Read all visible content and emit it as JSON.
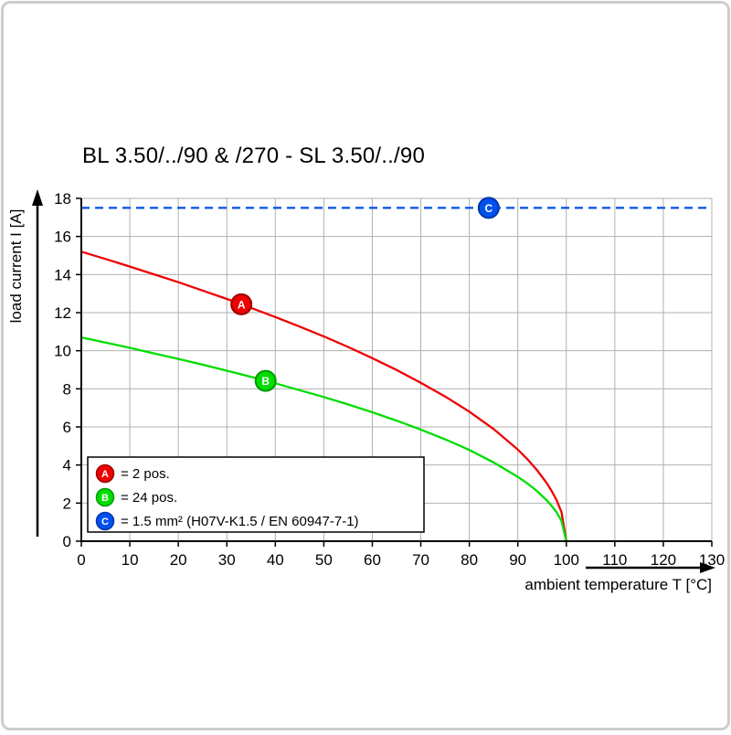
{
  "page": {
    "title": "BL 3.50/../90 & /270 - SL 3.50/../90"
  },
  "chart_data": {
    "type": "line",
    "title": "BL 3.50/../90 & /270 - SL 3.50/../90",
    "xlabel": "ambient temperature T [°C]",
    "ylabel": "load current I [A]",
    "xlim": [
      0,
      130
    ],
    "ylim": [
      0,
      18
    ],
    "x_ticks": [
      0,
      10,
      20,
      30,
      40,
      50,
      60,
      70,
      80,
      90,
      100,
      110,
      120,
      130
    ],
    "y_ticks": [
      0,
      2,
      4,
      6,
      8,
      10,
      12,
      14,
      16,
      18
    ],
    "grid": true,
    "grid_color": "#b0b0b0",
    "legend_position": "lower-left",
    "series": [
      {
        "name": "A",
        "legend_label": "= 2 pos.",
        "color": "#ee0000",
        "marker_edge": "#990000",
        "line_style": "solid",
        "marker_at": {
          "x": 33,
          "y": 12.44
        },
        "points": [
          [
            0,
            15.2
          ],
          [
            5,
            14.82
          ],
          [
            10,
            14.42
          ],
          [
            15,
            14.01
          ],
          [
            20,
            13.6
          ],
          [
            25,
            13.16
          ],
          [
            30,
            12.72
          ],
          [
            35,
            12.25
          ],
          [
            40,
            11.77
          ],
          [
            45,
            11.27
          ],
          [
            50,
            10.75
          ],
          [
            55,
            10.2
          ],
          [
            60,
            9.61
          ],
          [
            65,
            8.99
          ],
          [
            70,
            8.32
          ],
          [
            75,
            7.6
          ],
          [
            80,
            6.8
          ],
          [
            85,
            5.89
          ],
          [
            90,
            4.81
          ],
          [
            92,
            4.3
          ],
          [
            94,
            3.72
          ],
          [
            96,
            3.04
          ],
          [
            97,
            2.63
          ],
          [
            98,
            2.15
          ],
          [
            99,
            1.52
          ],
          [
            100,
            0
          ]
        ]
      },
      {
        "name": "B",
        "legend_label": "= 24 pos.",
        "color": "#00dd00",
        "marker_edge": "#009900",
        "line_style": "solid",
        "marker_at": {
          "x": 38,
          "y": 8.42
        },
        "points": [
          [
            0,
            10.7
          ],
          [
            5,
            10.43
          ],
          [
            10,
            10.15
          ],
          [
            15,
            9.86
          ],
          [
            20,
            9.57
          ],
          [
            25,
            9.27
          ],
          [
            30,
            8.95
          ],
          [
            35,
            8.63
          ],
          [
            40,
            8.29
          ],
          [
            45,
            7.93
          ],
          [
            50,
            7.57
          ],
          [
            55,
            7.18
          ],
          [
            60,
            6.77
          ],
          [
            65,
            6.33
          ],
          [
            70,
            5.86
          ],
          [
            75,
            5.35
          ],
          [
            80,
            4.79
          ],
          [
            85,
            4.14
          ],
          [
            90,
            3.38
          ],
          [
            92,
            3.03
          ],
          [
            94,
            2.62
          ],
          [
            96,
            2.14
          ],
          [
            97,
            1.85
          ],
          [
            98,
            1.51
          ],
          [
            99,
            1.07
          ],
          [
            100,
            0
          ]
        ]
      },
      {
        "name": "C",
        "legend_label": "= 1.5 mm² (H07V-K1.5 / EN 60947-7-1)",
        "color": "#0050ee",
        "marker_edge": "#0033aa",
        "line_style": "dashed",
        "marker_at": {
          "x": 84,
          "y": 17.5
        },
        "points": [
          [
            0,
            17.5
          ],
          [
            130,
            17.5
          ]
        ]
      }
    ]
  }
}
